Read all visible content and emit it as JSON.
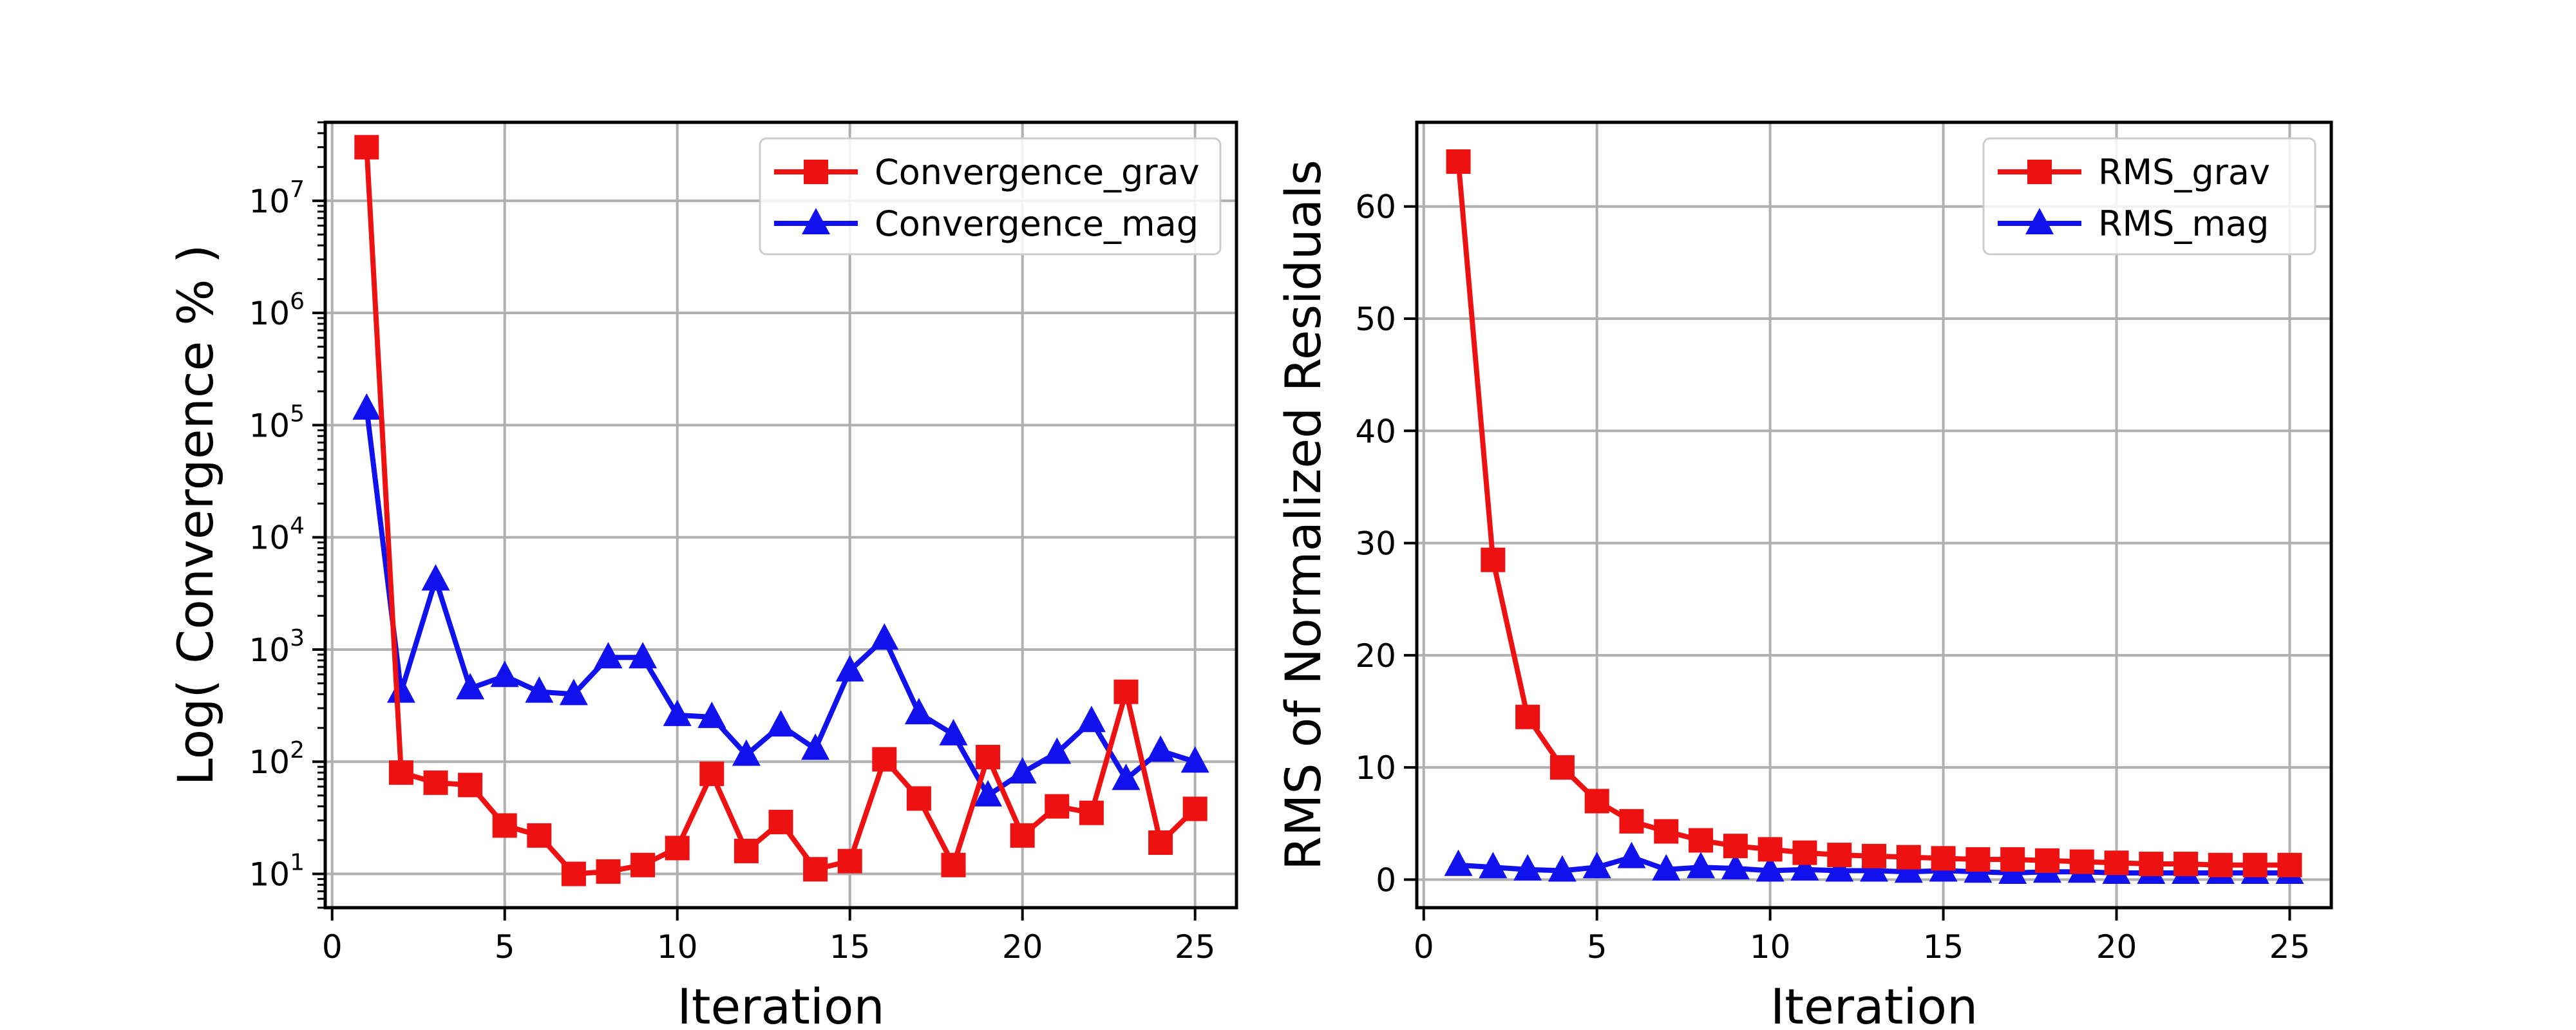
{
  "chart_data": [
    {
      "type": "line",
      "xlabel": "Iteration",
      "ylabel": "Log( Convergence % )",
      "yscale": "log",
      "xlim": [
        -0.2,
        26.2
      ],
      "ylim": [
        5,
        50000000
      ],
      "grid": true,
      "legend_position": "top-right",
      "x_ticks": [
        0,
        5,
        10,
        15,
        20,
        25
      ],
      "x_tick_labels": [
        "0",
        "5",
        "10",
        "15",
        "20",
        "25"
      ],
      "y_ticks": [
        10,
        100,
        1000,
        10000,
        100000,
        1000000,
        10000000
      ],
      "y_tick_labels": [
        {
          "base": "10",
          "exp": "1"
        },
        {
          "base": "10",
          "exp": "2"
        },
        {
          "base": "10",
          "exp": "3"
        },
        {
          "base": "10",
          "exp": "4"
        },
        {
          "base": "10",
          "exp": "5"
        },
        {
          "base": "10",
          "exp": "6"
        },
        {
          "base": "10",
          "exp": "7"
        }
      ],
      "x": [
        1,
        2,
        3,
        4,
        5,
        6,
        7,
        8,
        9,
        10,
        11,
        12,
        13,
        14,
        15,
        16,
        17,
        18,
        19,
        20,
        21,
        22,
        23,
        24,
        25
      ],
      "series": [
        {
          "name": "Convergence_grav",
          "color": "#ee1111",
          "marker": "square",
          "values": [
            30000000,
            80,
            65,
            62,
            27,
            22,
            10,
            10.5,
            12,
            17,
            78,
            16,
            29,
            11,
            13,
            105,
            47,
            12,
            110,
            22,
            40,
            35,
            420,
            19,
            38
          ]
        },
        {
          "name": "Convergence_mag",
          "color": "#1111ee",
          "marker": "triangle",
          "values": [
            140000,
            420,
            4200,
            450,
            580,
            420,
            400,
            850,
            850,
            260,
            250,
            115,
            210,
            130,
            650,
            1250,
            270,
            175,
            50,
            80,
            120,
            230,
            70,
            125,
            100
          ]
        }
      ]
    },
    {
      "type": "line",
      "xlabel": "Iteration",
      "ylabel": "RMS of Normalized Residuals",
      "yscale": "linear",
      "xlim": [
        -0.2,
        26.2
      ],
      "ylim": [
        -2.5,
        67.5
      ],
      "grid": true,
      "legend_position": "top-right",
      "x_ticks": [
        0,
        5,
        10,
        15,
        20,
        25
      ],
      "x_tick_labels": [
        "0",
        "5",
        "10",
        "15",
        "20",
        "25"
      ],
      "y_ticks": [
        0,
        10,
        20,
        30,
        40,
        50,
        60
      ],
      "y_tick_labels": [
        "0",
        "10",
        "20",
        "30",
        "40",
        "50",
        "60"
      ],
      "x": [
        1,
        2,
        3,
        4,
        5,
        6,
        7,
        8,
        9,
        10,
        11,
        12,
        13,
        14,
        15,
        16,
        17,
        18,
        19,
        20,
        21,
        22,
        23,
        24,
        25
      ],
      "series": [
        {
          "name": "RMS_grav",
          "color": "#ee1111",
          "marker": "square",
          "values": [
            64,
            28.5,
            14.5,
            10,
            7,
            5.2,
            4.3,
            3.5,
            3.0,
            2.7,
            2.4,
            2.2,
            2.1,
            2.0,
            1.9,
            1.8,
            1.8,
            1.7,
            1.6,
            1.5,
            1.4,
            1.4,
            1.3,
            1.3,
            1.3
          ]
        },
        {
          "name": "RMS_mag",
          "color": "#1111ee",
          "marker": "triangle",
          "values": [
            1.3,
            1.1,
            0.9,
            0.8,
            1.1,
            2.0,
            0.9,
            1.1,
            1.0,
            0.8,
            0.9,
            0.8,
            0.8,
            0.7,
            0.8,
            0.7,
            0.6,
            0.7,
            0.7,
            0.6,
            0.6,
            0.6,
            0.6,
            0.6,
            0.6
          ]
        }
      ]
    }
  ]
}
